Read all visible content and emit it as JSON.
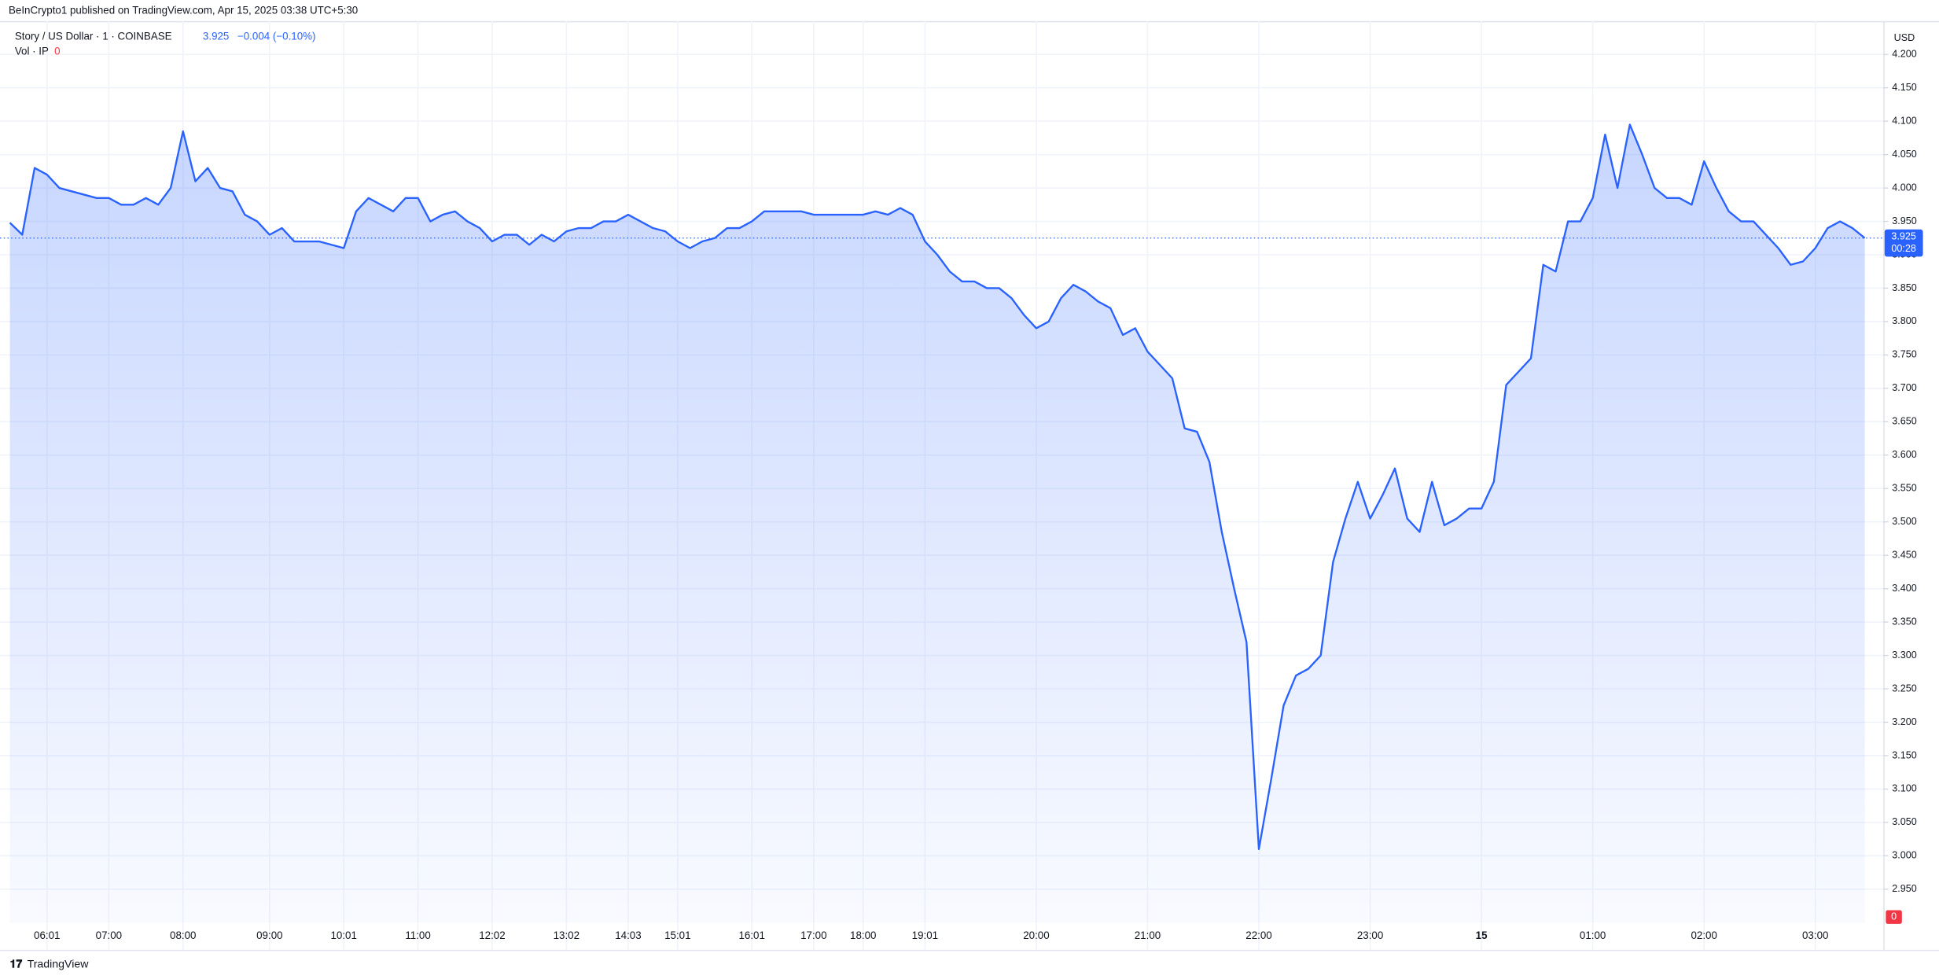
{
  "chart_data": {
    "type": "area",
    "header": "BeInCrypto1 published on TradingView.com, Apr 15, 2025 03:38 UTC+5:30",
    "legend": {
      "symbol": "Story / US Dollar · 1 · COINBASE",
      "price": 3.925,
      "change": "−0.004 (−0.10%)",
      "volume_label": "Vol · IP",
      "volume": 0
    },
    "currency": "USD",
    "countdown": "00:28",
    "brand": "TradingView",
    "series": [
      {
        "name": "Story / US Dollar",
        "color": "#2962ff",
        "values": [
          3.948,
          3.93,
          4.03,
          4.02,
          4.0,
          3.995,
          3.99,
          3.985,
          3.985,
          3.975,
          3.975,
          3.985,
          3.975,
          4.0,
          4.085,
          4.01,
          4.03,
          4.0,
          3.995,
          3.96,
          3.95,
          3.93,
          3.94,
          3.92,
          3.92,
          3.92,
          3.915,
          3.91,
          3.965,
          3.985,
          3.975,
          3.965,
          3.985,
          3.985,
          3.95,
          3.96,
          3.965,
          3.95,
          3.94,
          3.92,
          3.93,
          3.93,
          3.915,
          3.93,
          3.92,
          3.935,
          3.94,
          3.94,
          3.95,
          3.95,
          3.96,
          3.95,
          3.94,
          3.935,
          3.92,
          3.91,
          3.92,
          3.925,
          3.94,
          3.94,
          3.95,
          3.965,
          3.965,
          3.965,
          3.965,
          3.96,
          3.96,
          3.96,
          3.96,
          3.96,
          3.965,
          3.96,
          3.97,
          3.96,
          3.92,
          3.9,
          3.875,
          3.86,
          3.86,
          3.85,
          3.85,
          3.835,
          3.81,
          3.79,
          3.8,
          3.835,
          3.855,
          3.845,
          3.83,
          3.82,
          3.78,
          3.79,
          3.755,
          3.735,
          3.715,
          3.64,
          3.635,
          3.59,
          3.485,
          3.4,
          3.32,
          3.01,
          3.115,
          3.225,
          3.27,
          3.28,
          3.3,
          3.44,
          3.505,
          3.56,
          3.505,
          3.54,
          3.58,
          3.505,
          3.485,
          3.56,
          3.495,
          3.505,
          3.52,
          3.52,
          3.56,
          3.705,
          3.725,
          3.745,
          3.885,
          3.875,
          3.95,
          3.95,
          3.985,
          4.08,
          4.0,
          4.095,
          4.05,
          4.0,
          3.985,
          3.985,
          3.975,
          4.04,
          4.0,
          3.965,
          3.95,
          3.95,
          3.93,
          3.91,
          3.885,
          3.89,
          3.91,
          3.94,
          3.95,
          3.94,
          3.925
        ]
      }
    ],
    "xlim": [
      0,
      150
    ],
    "xticks": [
      {
        "value": 3,
        "label": "06:01"
      },
      {
        "value": 8,
        "label": "07:00"
      },
      {
        "value": 14,
        "label": "08:00"
      },
      {
        "value": 21,
        "label": "09:00"
      },
      {
        "value": 27,
        "label": "10:01"
      },
      {
        "value": 33,
        "label": "11:00"
      },
      {
        "value": 39,
        "label": "12:02"
      },
      {
        "value": 45,
        "label": "13:02"
      },
      {
        "value": 50,
        "label": "14:03"
      },
      {
        "value": 54,
        "label": "15:01"
      },
      {
        "value": 60,
        "label": "16:01"
      },
      {
        "value": 65,
        "label": "17:00"
      },
      {
        "value": 69,
        "label": "18:00"
      },
      {
        "value": 74,
        "label": "19:01"
      },
      {
        "value": 83,
        "label": "20:00"
      },
      {
        "value": 92,
        "label": "21:00"
      },
      {
        "value": 101,
        "label": "22:00"
      },
      {
        "value": 110,
        "label": "23:00"
      },
      {
        "value": 119,
        "label": "15"
      },
      {
        "value": 128,
        "label": "01:00"
      },
      {
        "value": 137,
        "label": "02:00"
      },
      {
        "value": 146,
        "label": "03:00"
      }
    ],
    "ylim": [
      2.9,
      4.25
    ],
    "yticks": [
      {
        "value": 2.95,
        "label": "2.950"
      },
      {
        "value": 3.0,
        "label": "3.000"
      },
      {
        "value": 3.05,
        "label": "3.050"
      },
      {
        "value": 3.1,
        "label": "3.100"
      },
      {
        "value": 3.15,
        "label": "3.150"
      },
      {
        "value": 3.2,
        "label": "3.200"
      },
      {
        "value": 3.25,
        "label": "3.250"
      },
      {
        "value": 3.3,
        "label": "3.300"
      },
      {
        "value": 3.35,
        "label": "3.350"
      },
      {
        "value": 3.4,
        "label": "3.400"
      },
      {
        "value": 3.45,
        "label": "3.450"
      },
      {
        "value": 3.5,
        "label": "3.500"
      },
      {
        "value": 3.55,
        "label": "3.550"
      },
      {
        "value": 3.6,
        "label": "3.600"
      },
      {
        "value": 3.65,
        "label": "3.650"
      },
      {
        "value": 3.7,
        "label": "3.700"
      },
      {
        "value": 3.75,
        "label": "3.750"
      },
      {
        "value": 3.8,
        "label": "3.800"
      },
      {
        "value": 3.85,
        "label": "3.850"
      },
      {
        "value": 3.9,
        "label": "3.900"
      },
      {
        "value": 3.95,
        "label": "3.950"
      },
      {
        "value": 4.0,
        "label": "4.000"
      },
      {
        "value": 4.05,
        "label": "4.050"
      },
      {
        "value": 4.1,
        "label": "4.100"
      },
      {
        "value": 4.15,
        "label": "4.150"
      },
      {
        "value": 4.2,
        "label": "4.200"
      }
    ],
    "grid": true
  }
}
